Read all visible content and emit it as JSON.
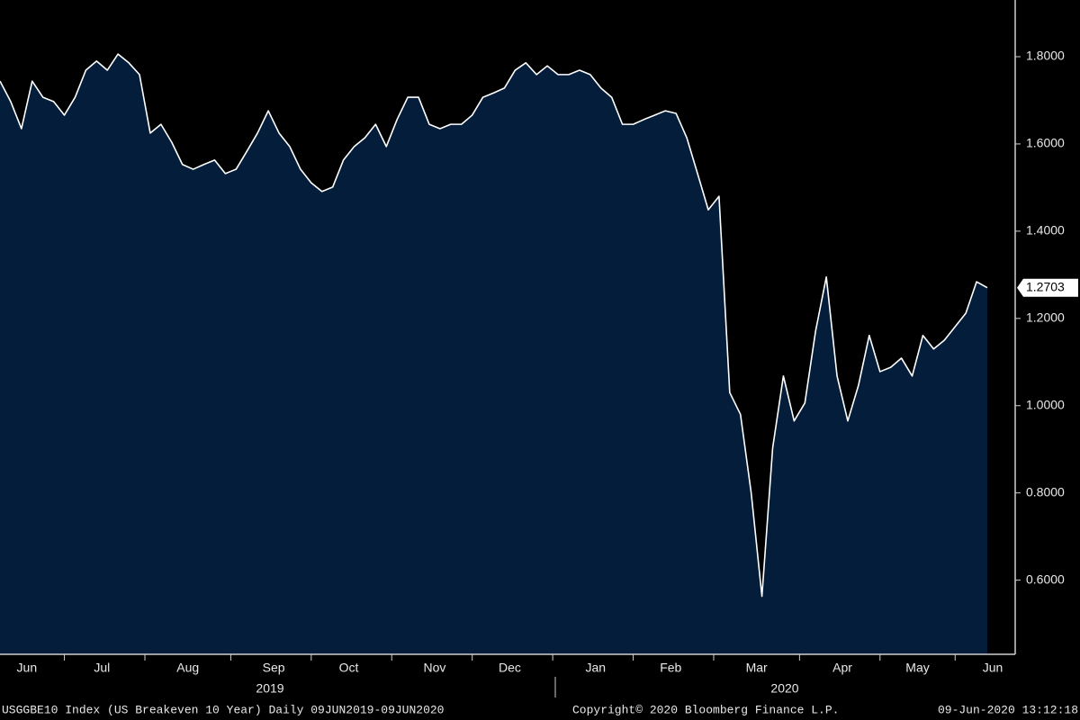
{
  "chart_data": {
    "type": "area",
    "categories": [
      null,
      null,
      "Jun",
      null,
      null,
      null,
      null,
      null,
      null,
      "Jul",
      null,
      null,
      null,
      null,
      null,
      null,
      null,
      "Aug",
      null,
      null,
      null,
      null,
      null,
      null,
      null,
      "Sep",
      null,
      null,
      null,
      null,
      null,
      null,
      "Oct",
      null,
      null,
      null,
      null,
      null,
      null,
      null,
      "Nov",
      null,
      null,
      null,
      null,
      null,
      null,
      "Dec",
      null,
      null,
      null,
      null,
      null,
      null,
      null,
      "Jan",
      null,
      null,
      null,
      null,
      null,
      null,
      "Feb",
      null,
      null,
      null,
      null,
      null,
      null,
      null,
      "Mar",
      null,
      null,
      null,
      null,
      null,
      null,
      null,
      "Apr",
      null,
      null,
      null,
      null,
      null,
      null,
      "May",
      null,
      null,
      null,
      null,
      null,
      null,
      "Jun"
    ],
    "values": [
      1.744,
      1.697,
      1.635,
      1.744,
      1.707,
      1.697,
      1.666,
      1.707,
      1.769,
      1.79,
      1.769,
      1.806,
      1.786,
      1.759,
      1.625,
      1.645,
      1.604,
      1.553,
      1.542,
      1.553,
      1.563,
      1.532,
      1.542,
      1.583,
      1.625,
      1.676,
      1.625,
      1.594,
      1.542,
      1.511,
      1.491,
      1.501,
      1.563,
      1.594,
      1.614,
      1.645,
      1.594,
      1.656,
      1.707,
      1.707,
      1.645,
      1.635,
      1.645,
      1.645,
      1.666,
      1.707,
      1.717,
      1.728,
      1.769,
      1.786,
      1.759,
      1.779,
      1.759,
      1.759,
      1.769,
      1.759,
      1.728,
      1.707,
      1.645,
      1.645,
      1.656,
      1.666,
      1.676,
      1.67,
      1.614,
      1.532,
      1.449,
      1.48,
      1.03,
      0.98,
      0.8,
      0.563,
      0.903,
      1.068,
      0.965,
      1.006,
      1.171,
      1.295,
      1.068,
      0.965,
      1.047,
      1.161,
      1.078,
      1.088,
      1.109,
      1.068,
      1.161,
      1.13,
      1.15,
      1.181,
      1.212,
      1.284,
      1.2703
    ],
    "color": "#031d3b",
    "line_color": "#ffffff",
    "ylim": [
      0.43,
      1.93
    ],
    "yticks": [
      {
        "value": 0.6,
        "label": "0.6000"
      },
      {
        "value": 0.8,
        "label": "0.8000"
      },
      {
        "value": 1.0,
        "label": "1.0000"
      },
      {
        "value": 1.2,
        "label": "1.2000"
      },
      {
        "value": 1.4,
        "label": "1.4000"
      },
      {
        "value": 1.6,
        "label": "1.6000"
      },
      {
        "value": 1.8,
        "label": "1.8000"
      }
    ],
    "year_labels": [
      "2019",
      "2020"
    ],
    "footer_left": "USGGBE10 Index (US Breakeven 10 Year)  Daily 09JUN2019-09JUN2020",
    "footer_center": "Copyright© 2020 Bloomberg Finance L.P.",
    "footer_right": "09-Jun-2020 13:12:18"
  }
}
